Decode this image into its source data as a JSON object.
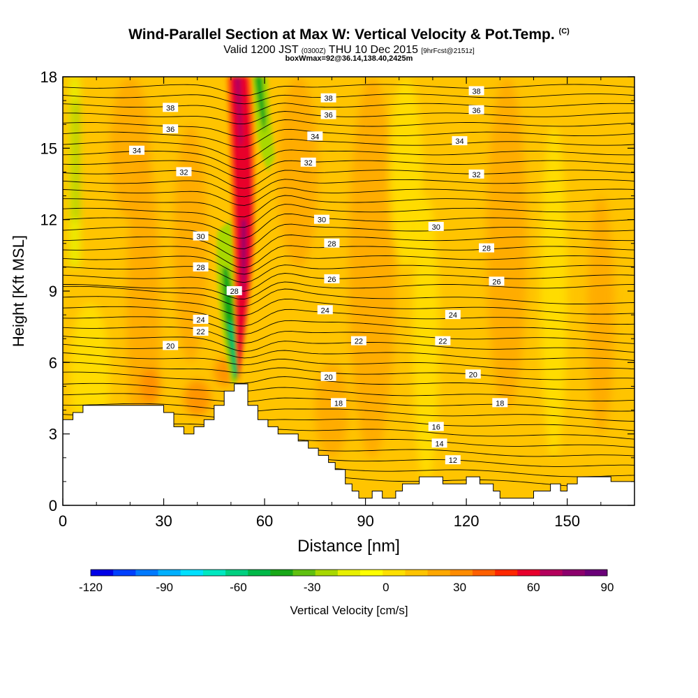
{
  "title": {
    "main": "Wind-Parallel Section at Max W: Vertical Velocity & Pot.Temp.",
    "copyright": "(C)",
    "sub_prefix": "Valid 1200 JST",
    "sub_small1": "(0300Z)",
    "sub_mid": "THU 10 Dec 2015",
    "sub_small2": "[9hrFcst@2151z]",
    "sub2": "boxWmax=92@36.14,138.40,2425m"
  },
  "chart_data": {
    "type": "heatmap",
    "title": "Wind-Parallel Section at Max W: Vertical Velocity & Pot.Temp.",
    "xlabel": "Distance [nm]",
    "ylabel": "Height [Kft MSL]",
    "xlim": [
      0,
      170
    ],
    "ylim": [
      0,
      18
    ],
    "x_ticks": [
      0,
      30,
      60,
      90,
      120,
      150
    ],
    "y_ticks": [
      0,
      3,
      6,
      9,
      12,
      15,
      18
    ],
    "colorbar": {
      "label": "Vertical Velocity [cm/s]",
      "min": -120,
      "max": 90,
      "step": 10,
      "ticks": [
        -120,
        -90,
        -60,
        -30,
        0,
        30,
        60,
        90
      ],
      "colors": [
        "#0000e6",
        "#0040ff",
        "#007aff",
        "#00b0ff",
        "#00e0ff",
        "#00e8c0",
        "#00d080",
        "#00b848",
        "#18a818",
        "#60c010",
        "#a8d800",
        "#e8f000",
        "#ffff00",
        "#ffe000",
        "#ffc400",
        "#ffa800",
        "#ff8c00",
        "#ff6000",
        "#ff2800",
        "#e8002c",
        "#b4005c",
        "#8c006c",
        "#6a0078"
      ]
    },
    "theta_contours": {
      "unit": "Pot.Temp.",
      "levels": [
        12,
        14,
        16,
        18,
        20,
        22,
        24,
        26,
        28,
        30,
        32,
        34,
        36,
        38
      ],
      "labels": [
        {
          "v": "38",
          "x": 32,
          "y": 16.7
        },
        {
          "v": "36",
          "x": 32,
          "y": 15.8
        },
        {
          "v": "34",
          "x": 22,
          "y": 14.9
        },
        {
          "v": "32",
          "x": 36,
          "y": 14.0
        },
        {
          "v": "30",
          "x": 41,
          "y": 11.3
        },
        {
          "v": "28",
          "x": 41,
          "y": 10.0
        },
        {
          "v": "28",
          "x": 51,
          "y": 9.0
        },
        {
          "v": "24",
          "x": 41,
          "y": 7.8
        },
        {
          "v": "22",
          "x": 41,
          "y": 7.3
        },
        {
          "v": "20",
          "x": 32,
          "y": 6.7
        },
        {
          "v": "38",
          "x": 79,
          "y": 17.1
        },
        {
          "v": "36",
          "x": 79,
          "y": 16.4
        },
        {
          "v": "34",
          "x": 75,
          "y": 15.5
        },
        {
          "v": "32",
          "x": 73,
          "y": 14.4
        },
        {
          "v": "30",
          "x": 77,
          "y": 12.0
        },
        {
          "v": "28",
          "x": 80,
          "y": 11.0
        },
        {
          "v": "26",
          "x": 80,
          "y": 9.5
        },
        {
          "v": "24",
          "x": 78,
          "y": 8.2
        },
        {
          "v": "22",
          "x": 88,
          "y": 6.9
        },
        {
          "v": "20",
          "x": 79,
          "y": 5.4
        },
        {
          "v": "18",
          "x": 82,
          "y": 4.3
        },
        {
          "v": "38",
          "x": 123,
          "y": 17.4
        },
        {
          "v": "36",
          "x": 123,
          "y": 16.6
        },
        {
          "v": "34",
          "x": 118,
          "y": 15.3
        },
        {
          "v": "32",
          "x": 123,
          "y": 13.9
        },
        {
          "v": "30",
          "x": 111,
          "y": 11.7
        },
        {
          "v": "28",
          "x": 126,
          "y": 10.8
        },
        {
          "v": "26",
          "x": 129,
          "y": 9.4
        },
        {
          "v": "24",
          "x": 116,
          "y": 8.0
        },
        {
          "v": "22",
          "x": 113,
          "y": 6.9
        },
        {
          "v": "20",
          "x": 122,
          "y": 5.5
        },
        {
          "v": "18",
          "x": 130,
          "y": 4.3
        },
        {
          "v": "16",
          "x": 111,
          "y": 3.3
        },
        {
          "v": "14",
          "x": 112,
          "y": 2.6
        },
        {
          "v": "12",
          "x": 116,
          "y": 1.9
        }
      ]
    },
    "terrain_top_kft": [
      [
        0,
        3.6
      ],
      [
        3,
        3.6
      ],
      [
        3,
        3.9
      ],
      [
        6,
        3.9
      ],
      [
        6,
        4.2
      ],
      [
        30,
        4.2
      ],
      [
        30,
        3.9
      ],
      [
        33,
        3.9
      ],
      [
        33,
        3.3
      ],
      [
        36,
        3.3
      ],
      [
        36,
        3.0
      ],
      [
        39,
        3.0
      ],
      [
        39,
        3.3
      ],
      [
        42,
        3.3
      ],
      [
        42,
        3.6
      ],
      [
        45,
        3.6
      ],
      [
        45,
        4.2
      ],
      [
        48,
        4.2
      ],
      [
        48,
        4.8
      ],
      [
        51,
        4.8
      ],
      [
        51,
        5.1
      ],
      [
        55,
        5.1
      ],
      [
        55,
        4.2
      ],
      [
        58,
        4.2
      ],
      [
        58,
        3.6
      ],
      [
        61,
        3.6
      ],
      [
        61,
        3.3
      ],
      [
        64,
        3.3
      ],
      [
        64,
        3.0
      ],
      [
        70,
        3.0
      ],
      [
        70,
        2.7
      ],
      [
        73,
        2.7
      ],
      [
        73,
        2.4
      ],
      [
        76,
        2.4
      ],
      [
        76,
        2.1
      ],
      [
        79,
        2.1
      ],
      [
        79,
        1.8
      ],
      [
        81,
        1.8
      ],
      [
        81,
        1.5
      ],
      [
        84,
        1.5
      ],
      [
        84,
        0.9
      ],
      [
        86,
        0.9
      ],
      [
        86,
        0.6
      ],
      [
        88,
        0.6
      ],
      [
        88,
        0.3
      ],
      [
        92,
        0.3
      ],
      [
        92,
        0.6
      ],
      [
        95,
        0.6
      ],
      [
        95,
        0.3
      ],
      [
        99,
        0.3
      ],
      [
        99,
        0.6
      ],
      [
        101,
        0.6
      ],
      [
        101,
        0.9
      ],
      [
        106,
        0.9
      ],
      [
        106,
        1.2
      ],
      [
        113,
        1.2
      ],
      [
        113,
        0.9
      ],
      [
        120,
        0.9
      ],
      [
        120,
        1.2
      ],
      [
        124,
        1.2
      ],
      [
        124,
        0.9
      ],
      [
        128,
        0.9
      ],
      [
        128,
        0.6
      ],
      [
        130,
        0.6
      ],
      [
        130,
        0.3
      ],
      [
        140,
        0.3
      ],
      [
        140,
        0.6
      ],
      [
        145,
        0.6
      ],
      [
        145,
        0.9
      ],
      [
        148,
        0.9
      ],
      [
        148,
        0.6
      ],
      [
        150,
        0.6
      ],
      [
        150,
        0.9
      ],
      [
        153,
        0.9
      ],
      [
        153,
        1.2
      ],
      [
        163,
        1.2
      ],
      [
        163,
        1.0
      ],
      [
        170,
        1.0
      ]
    ],
    "w_features": [
      {
        "desc": "updraft core",
        "x_base": 52,
        "y_base": 5.0,
        "x_top": 52,
        "y_top": 18,
        "max": 92
      },
      {
        "desc": "downdraft band",
        "x_base": 49,
        "y_base": 5.0,
        "x_top": 60,
        "y_top": 18,
        "min": -75
      }
    ]
  }
}
